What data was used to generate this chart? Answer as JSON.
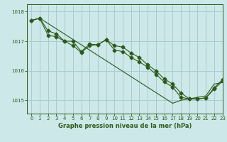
{
  "title": "Graphe pression niveau de la mer (hPa)",
  "bg_color": "#cce8e8",
  "grid_color": "#aacccc",
  "line_color": "#2d5a1b",
  "xlim": [
    -0.5,
    23
  ],
  "ylim": [
    1014.55,
    1018.25
  ],
  "yticks": [
    1015,
    1016,
    1017,
    1018
  ],
  "xticks": [
    0,
    1,
    2,
    3,
    4,
    5,
    6,
    7,
    8,
    9,
    10,
    11,
    12,
    13,
    14,
    15,
    16,
    17,
    18,
    19,
    20,
    21,
    22,
    23
  ],
  "line_straight": [
    1017.7,
    1017.78,
    1017.6,
    1017.42,
    1017.24,
    1017.06,
    1016.88,
    1016.7,
    1016.52,
    1016.34,
    1016.16,
    1015.98,
    1015.8,
    1015.62,
    1015.44,
    1015.26,
    1015.08,
    1014.9,
    1015.0,
    1015.05,
    1015.1,
    1015.15,
    1015.55,
    1015.6
  ],
  "line_jagged1": [
    1017.7,
    1017.78,
    1017.2,
    1017.15,
    1017.0,
    1017.0,
    1016.65,
    1016.9,
    1016.88,
    1017.05,
    1016.85,
    1016.8,
    1016.6,
    1016.45,
    1016.2,
    1016.0,
    1015.72,
    1015.55,
    1015.25,
    1015.05,
    1015.05,
    1015.08,
    1015.38,
    1015.65
  ],
  "line_jagged2": [
    1017.7,
    1017.78,
    1017.35,
    1017.25,
    1017.0,
    1016.85,
    1016.62,
    1016.85,
    1016.88,
    1017.05,
    1016.7,
    1016.65,
    1016.45,
    1016.3,
    1016.12,
    1015.88,
    1015.62,
    1015.45,
    1015.1,
    1015.05,
    1015.05,
    1015.08,
    1015.42,
    1015.7
  ]
}
